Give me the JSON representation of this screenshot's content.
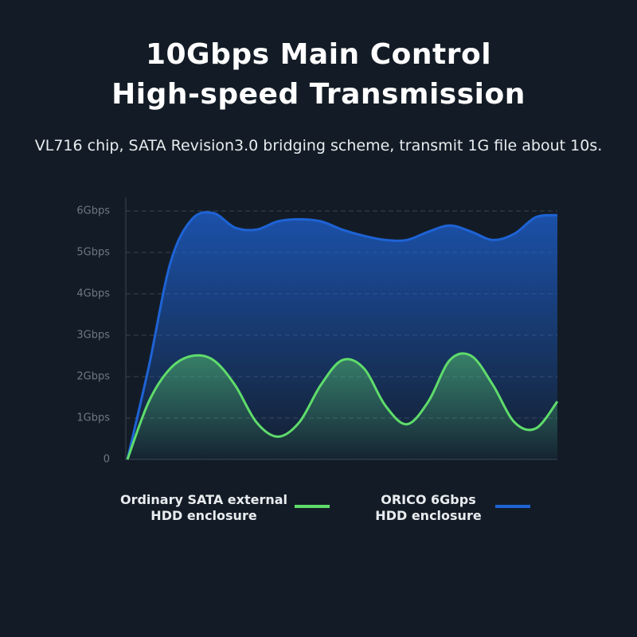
{
  "chart_data": {
    "type": "area-line",
    "title": "10Gbps Main Control\nHigh-speed Transmission",
    "subtitle": "VL716 chip, SATA Revision3.0 bridging scheme, transmit 1G file about 10s.",
    "categories": [
      null,
      null,
      null,
      null,
      null,
      null,
      null,
      null,
      null,
      null,
      null,
      null,
      null,
      null,
      null,
      null,
      null,
      null,
      null,
      null,
      null
    ],
    "series": [
      {
        "name": "Ordinary SATA external\nHDD enclosure",
        "color": "#5fdc6b",
        "values": [
          0,
          1.4,
          2.2,
          2.5,
          2.4,
          1.8,
          0.9,
          0.55,
          0.9,
          1.8,
          2.4,
          2.2,
          1.3,
          0.85,
          1.4,
          2.4,
          2.5,
          1.8,
          0.9,
          0.75,
          1.4
        ]
      },
      {
        "name": "ORICO 6Gbps\nHDD enclosure",
        "color": "#1e63d6",
        "values": [
          0,
          2.25,
          4.75,
          5.8,
          5.95,
          5.6,
          5.55,
          5.75,
          5.8,
          5.75,
          5.55,
          5.4,
          5.3,
          5.3,
          5.5,
          5.65,
          5.5,
          5.3,
          5.45,
          5.85,
          5.9
        ]
      }
    ],
    "ylim": [
      0,
      6
    ],
    "yticks": [
      0,
      {
        "value": 1,
        "label": "1Gbps"
      },
      {
        "value": 2,
        "label": "2Gbps"
      },
      {
        "value": 3,
        "label": "3Gbps"
      },
      {
        "value": 4,
        "label": "4Gbps"
      },
      {
        "value": 5,
        "label": "5Gbps"
      },
      {
        "value": 6,
        "label": "6Gbps"
      }
    ],
    "grid": true
  }
}
